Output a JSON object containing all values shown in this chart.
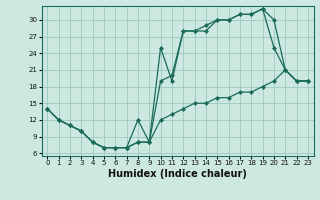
{
  "xlabel": "Humidex (Indice chaleur)",
  "bg_color": "#cce8e0",
  "grid_color": "#9dc8be",
  "line_color": "#1a6b5a",
  "xlim": [
    -0.5,
    23.5
  ],
  "ylim": [
    5.5,
    32.5
  ],
  "xticks": [
    0,
    1,
    2,
    3,
    4,
    5,
    6,
    7,
    8,
    9,
    10,
    11,
    12,
    13,
    14,
    15,
    16,
    17,
    18,
    19,
    20,
    21,
    22,
    23
  ],
  "yticks": [
    6,
    9,
    12,
    15,
    18,
    21,
    24,
    27,
    30
  ],
  "line1_x": [
    0,
    1,
    2,
    3,
    4,
    5,
    6,
    7,
    8,
    9,
    10,
    11,
    12,
    13,
    14,
    15,
    16,
    17,
    18,
    19,
    20,
    21,
    22,
    23
  ],
  "line1_y": [
    14,
    12,
    11,
    10,
    8,
    7,
    7,
    7,
    8,
    8,
    19,
    20,
    28,
    28,
    29,
    30,
    30,
    31,
    31,
    32,
    30,
    21,
    19,
    19
  ],
  "line2_x": [
    0,
    1,
    2,
    3,
    4,
    5,
    6,
    7,
    8,
    9,
    10,
    11,
    12,
    13,
    14,
    15,
    16,
    17,
    18,
    19,
    20,
    21,
    22,
    23
  ],
  "line2_y": [
    14,
    12,
    11,
    10,
    8,
    7,
    7,
    7,
    12,
    8,
    25,
    19,
    28,
    28,
    28,
    30,
    30,
    31,
    31,
    32,
    25,
    21,
    19,
    19
  ],
  "line3_x": [
    0,
    1,
    2,
    3,
    4,
    5,
    6,
    7,
    8,
    9,
    10,
    11,
    12,
    13,
    14,
    15,
    16,
    17,
    18,
    19,
    20,
    21,
    22,
    23
  ],
  "line3_y": [
    14,
    12,
    11,
    10,
    8,
    7,
    7,
    7,
    8,
    8,
    12,
    13,
    14,
    15,
    15,
    16,
    16,
    17,
    17,
    18,
    19,
    21,
    19,
    19
  ],
  "xlabel_fontsize": 7,
  "tick_fontsize": 5,
  "linewidth": 0.9,
  "markersize": 2.0
}
